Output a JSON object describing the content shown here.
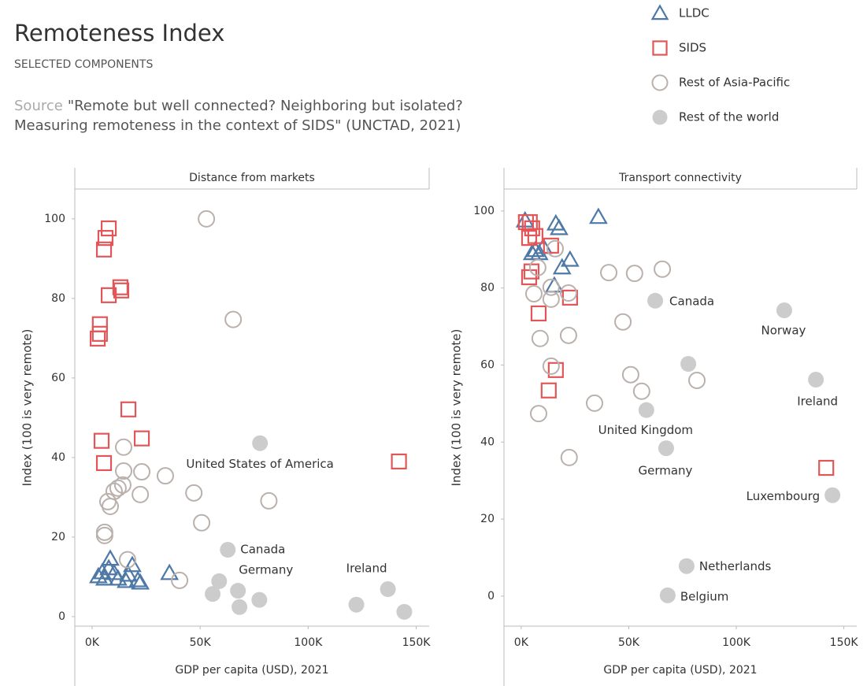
{
  "title": "Remoteness Index",
  "subtitle": "SELECTED COMPONENTS",
  "source_label": "Source",
  "source_text": [
    "\"Remote but well connected? Neighboring but isolated?",
    "Measuring remoteness in the context of SIDS\" (UNCTAD, 2021)"
  ],
  "chart_data": [
    {
      "type": "scatter",
      "title": "Distance from markets",
      "xlabel": "GDP per capita (USD), 2021",
      "ylabel": "Index (100 is very remote)",
      "xlim": [
        -8000,
        156000
      ],
      "ylim": [
        -2.4,
        107.5
      ],
      "xticks": [
        {
          "value": 0,
          "label": "0K"
        },
        {
          "value": 50000,
          "label": "50K"
        },
        {
          "value": 100000,
          "label": "100K"
        },
        {
          "value": 150000,
          "label": "150K"
        }
      ],
      "yticks": [
        0,
        20,
        40,
        60,
        80,
        100
      ],
      "grid": false,
      "series": [
        {
          "name": "LLDC",
          "color": "#4e79a7",
          "marker": "triangle",
          "filled": false,
          "x": [
            2900,
            4700,
            5800,
            7700,
            8400,
            10200,
            12000,
            15700,
            16800,
            18600,
            21200,
            22300,
            35800
          ],
          "values": [
            10.1,
            11.1,
            9.5,
            12.1,
            14.5,
            10.9,
            9.5,
            8.9,
            10.5,
            12.9,
            9.1,
            8.5,
            10.9
          ]
        },
        {
          "name": "SIDS",
          "color": "#e15759",
          "marker": "square",
          "filled": false,
          "x": [
            7700,
            6200,
            5500,
            7700,
            13100,
            13500,
            3600,
            3600,
            2600,
            16800,
            23000,
            4400,
            5500,
            142000
          ],
          "values": [
            97.6,
            95.2,
            92.3,
            80.8,
            82.8,
            82.0,
            73.5,
            71.1,
            69.9,
            52.1,
            44.8,
            44.2,
            38.6,
            39.0
          ]
        },
        {
          "name": "Rest of Asia-Pacific",
          "color": "#bab0ac",
          "marker": "circle",
          "filled": false,
          "x": [
            52900,
            65300,
            14600,
            14600,
            23000,
            14200,
            10200,
            7300,
            8400,
            22300,
            33900,
            47100,
            81800,
            50700,
            5800,
            5800,
            16400,
            40500,
            12000
          ],
          "values": [
            100,
            74.7,
            42.6,
            36.6,
            36.4,
            33.1,
            31.5,
            28.9,
            27.7,
            30.7,
            35.4,
            31.1,
            29.1,
            23.6,
            21.2,
            20.4,
            14.3,
            9.1,
            32.3
          ]
        },
        {
          "name": "Rest of the world",
          "color": "#cccccc",
          "marker": "circle",
          "filled": true,
          "x": [
            77700,
            62800,
            58800,
            55800,
            67500,
            68200,
            77400,
            122300,
            136900,
            144500
          ],
          "values": [
            43.6,
            16.8,
            8.9,
            5.7,
            6.5,
            2.4,
            4.2,
            3.0,
            6.9,
            1.2
          ],
          "point_labels": [
            "United States of America",
            "Canada",
            "Germany",
            null,
            null,
            null,
            null,
            null,
            "Ireland",
            null
          ]
        }
      ]
    },
    {
      "type": "scatter",
      "title": "Transport connectivity",
      "xlabel": "GDP per capita (USD), 2021",
      "ylabel": "Index (100 is very remote)",
      "xlim": [
        -8000,
        156000
      ],
      "ylim": [
        -7.8,
        105.7
      ],
      "xticks": [
        {
          "value": 0,
          "label": "0K"
        },
        {
          "value": 50000,
          "label": "50K"
        },
        {
          "value": 100000,
          "label": "100K"
        },
        {
          "value": 150000,
          "label": "150K"
        }
      ],
      "yticks": [
        0,
        20,
        40,
        60,
        80,
        100
      ],
      "grid": false,
      "series": [
        {
          "name": "LLDC",
          "color": "#4e79a7",
          "marker": "triangle",
          "filled": false,
          "x": [
            1800,
            5100,
            6600,
            8400,
            10300,
            16100,
            17600,
            19000,
            22700,
            15400,
            35900
          ],
          "values": [
            97.5,
            89.0,
            89.8,
            89.0,
            90.6,
            96.7,
            95.5,
            85.3,
            87.3,
            80.6,
            98.4
          ]
        },
        {
          "name": "SIDS",
          "color": "#e15759",
          "marker": "square",
          "filled": false,
          "x": [
            2200,
            4000,
            5100,
            3700,
            6600,
            4800,
            3700,
            13900,
            8100,
            22700,
            16100,
            12800,
            141800
          ],
          "values": [
            97.1,
            97.1,
            95.5,
            93.0,
            93.5,
            84.3,
            82.8,
            91.0,
            73.4,
            77.5,
            58.7,
            53.4,
            33.3
          ]
        },
        {
          "name": "Rest of Asia-Pacific",
          "color": "#bab0ac",
          "marker": "circle",
          "filled": false,
          "x": [
            15800,
            5900,
            8800,
            13900,
            13900,
            22000,
            22000,
            8100,
            22300,
            40700,
            52700,
            65600,
            47300,
            50900,
            56000,
            34100,
            81700,
            13900,
            7700
          ],
          "values": [
            90.2,
            78.5,
            66.9,
            77.1,
            59.7,
            78.7,
            67.7,
            47.4,
            36.0,
            84.0,
            83.8,
            84.9,
            71.2,
            57.5,
            53.2,
            50.1,
            56.0,
            80.2,
            85.3
          ]
        },
        {
          "name": "Rest of the world",
          "color": "#cccccc",
          "marker": "circle",
          "filled": true,
          "x": [
            62300,
            122300,
            77700,
            137000,
            58200,
            67400,
            144700,
            76900,
            68100
          ],
          "values": [
            76.7,
            74.2,
            60.3,
            56.2,
            48.3,
            38.4,
            26.2,
            7.8,
            0.2
          ],
          "point_labels": [
            "Canada",
            "Norway",
            null,
            "Ireland",
            "United Kingdom",
            "Germany",
            "Luxembourg",
            "Netherlands",
            "Belgium"
          ]
        }
      ]
    }
  ]
}
